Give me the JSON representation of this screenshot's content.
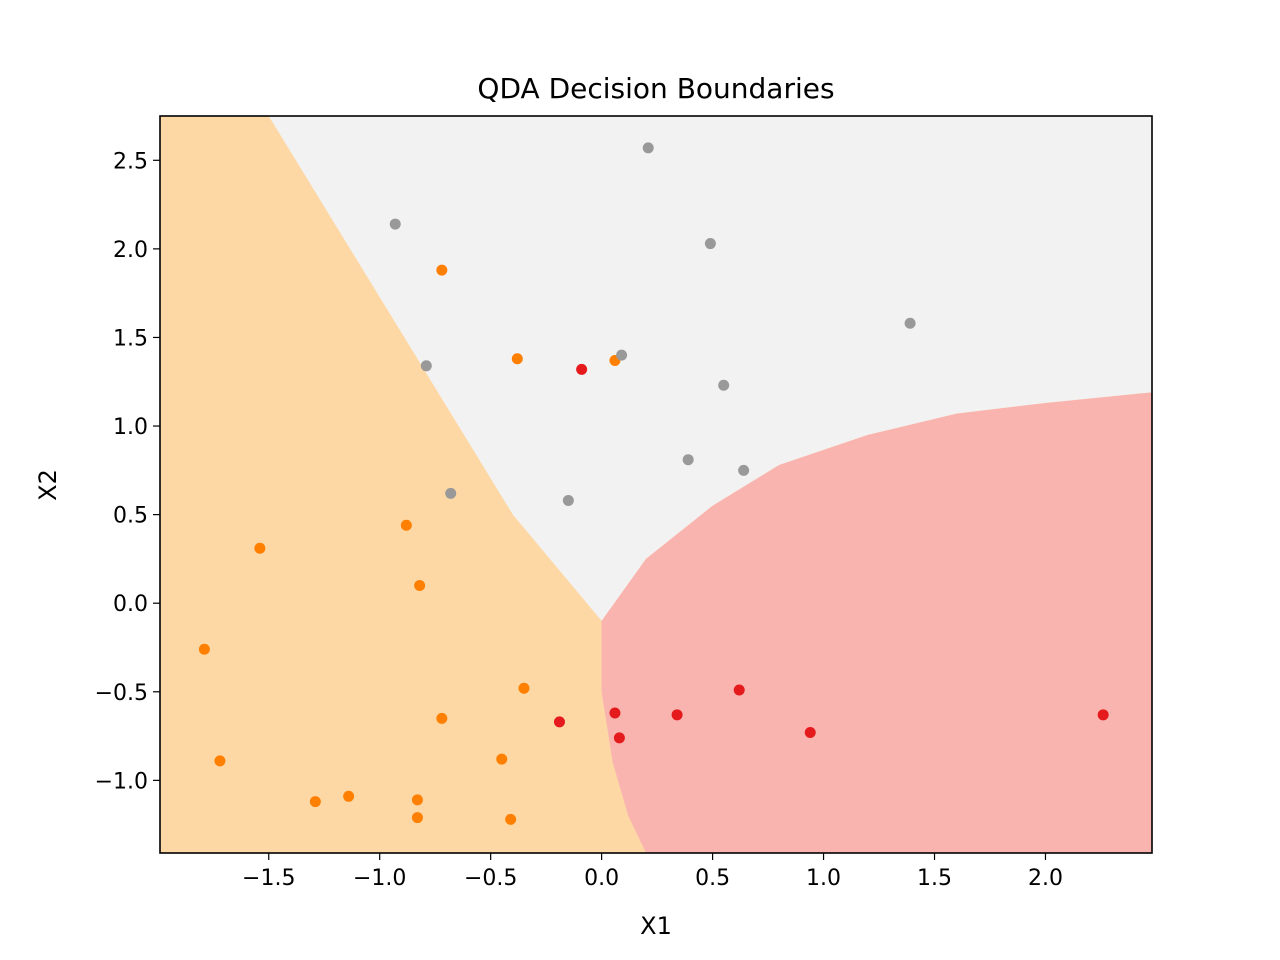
{
  "chart_data": {
    "type": "scatter",
    "title": "QDA Decision Boundaries",
    "xlabel": "X1",
    "ylabel": "X2",
    "xlim": [
      -1.99,
      2.48
    ],
    "ylim": [
      -1.41,
      2.75
    ],
    "xticks": [
      -1.5,
      -1.0,
      -0.5,
      0.0,
      0.5,
      1.0,
      1.5,
      2.0
    ],
    "xtick_labels": [
      "−1.5",
      "−1.0",
      "−0.5",
      "0.0",
      "0.5",
      "1.0",
      "1.5",
      "2.0"
    ],
    "yticks": [
      -1.0,
      -0.5,
      0.0,
      0.5,
      1.0,
      1.5,
      2.0,
      2.5
    ],
    "ytick_labels": [
      "−1.0",
      "−0.5",
      "0.0",
      "0.5",
      "1.0",
      "1.5",
      "2.0",
      "2.5"
    ],
    "grid": false,
    "regions": {
      "orange_color": "#fdd8a5",
      "gray_color": "#f2f2f2",
      "red_color": "#fab4af",
      "orange_gray_boundary": [
        [
          -1.5,
          2.75
        ],
        [
          -0.4,
          0.5
        ],
        [
          0.0,
          -0.1
        ]
      ],
      "red_top_boundary": [
        [
          0.0,
          -0.1
        ],
        [
          0.2,
          0.25
        ],
        [
          0.5,
          0.55
        ],
        [
          0.8,
          0.78
        ],
        [
          1.2,
          0.95
        ],
        [
          1.6,
          1.07
        ],
        [
          2.0,
          1.13
        ],
        [
          2.48,
          1.19
        ]
      ],
      "red_left_boundary": [
        [
          0.0,
          -0.1
        ],
        [
          0.0,
          -0.5
        ],
        [
          0.05,
          -0.9
        ],
        [
          0.12,
          -1.2
        ],
        [
          0.2,
          -1.41
        ]
      ]
    },
    "series": [
      {
        "color": "#ff7f00",
        "x": [
          -0.72,
          -0.38,
          0.06,
          -0.88,
          -1.54,
          -0.82,
          -1.79,
          -0.35,
          -0.72,
          -1.72,
          -0.45,
          -1.29,
          -1.14,
          -0.83,
          -0.83,
          -0.41
        ],
        "y": [
          1.88,
          1.38,
          1.37,
          0.44,
          0.31,
          0.1,
          -0.26,
          -0.48,
          -0.65,
          -0.89,
          -0.88,
          -1.12,
          -1.09,
          -1.11,
          -1.21,
          -1.22
        ]
      },
      {
        "color": "#999999",
        "x": [
          0.21,
          -0.93,
          0.49,
          1.39,
          0.09,
          -0.79,
          0.55,
          0.39,
          0.64,
          -0.68,
          -0.15
        ],
        "y": [
          2.57,
          2.14,
          2.03,
          1.58,
          1.4,
          1.34,
          1.23,
          0.81,
          0.75,
          0.62,
          0.58
        ]
      },
      {
        "color": "#e41a1c",
        "x": [
          -0.09,
          0.62,
          0.06,
          0.34,
          2.26,
          -0.19,
          0.94,
          0.08
        ],
        "y": [
          1.32,
          -0.49,
          -0.62,
          -0.63,
          -0.63,
          -0.67,
          -0.73,
          -0.76
        ]
      }
    ]
  }
}
